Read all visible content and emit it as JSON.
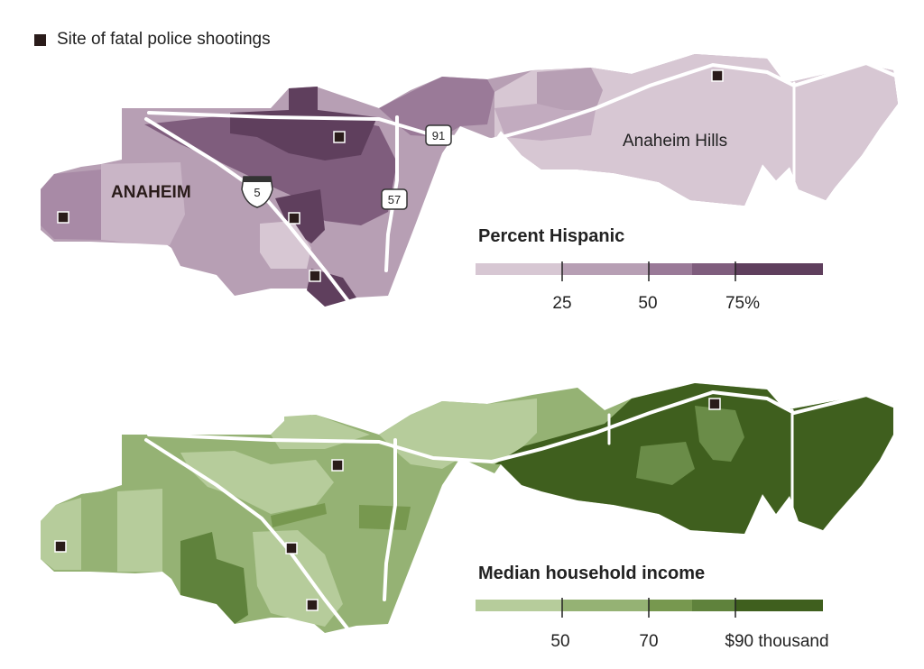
{
  "legend": {
    "shootings_label": "Site of fatal police shootings",
    "marker_color": "#2a1c1a"
  },
  "top_map": {
    "city_label": "ANAHEIM",
    "hills_label": "Anaheim Hills",
    "highway_5": "5",
    "highway_91": "91",
    "highway_57": "57",
    "scale_title": "Percent Hispanic",
    "ticks": [
      "25",
      "50",
      "75%"
    ],
    "colors": [
      "#d7c7d3",
      "#b79fb4",
      "#9a7a98",
      "#7f5d7d",
      "#5f3f5d"
    ]
  },
  "bottom_map": {
    "scale_title": "Median household income",
    "ticks": [
      "50",
      "70",
      "$90 thousand"
    ],
    "colors": [
      "#b6cc9b",
      "#95b274",
      "#77984f",
      "#5f823c",
      "#3f5f1e"
    ]
  }
}
